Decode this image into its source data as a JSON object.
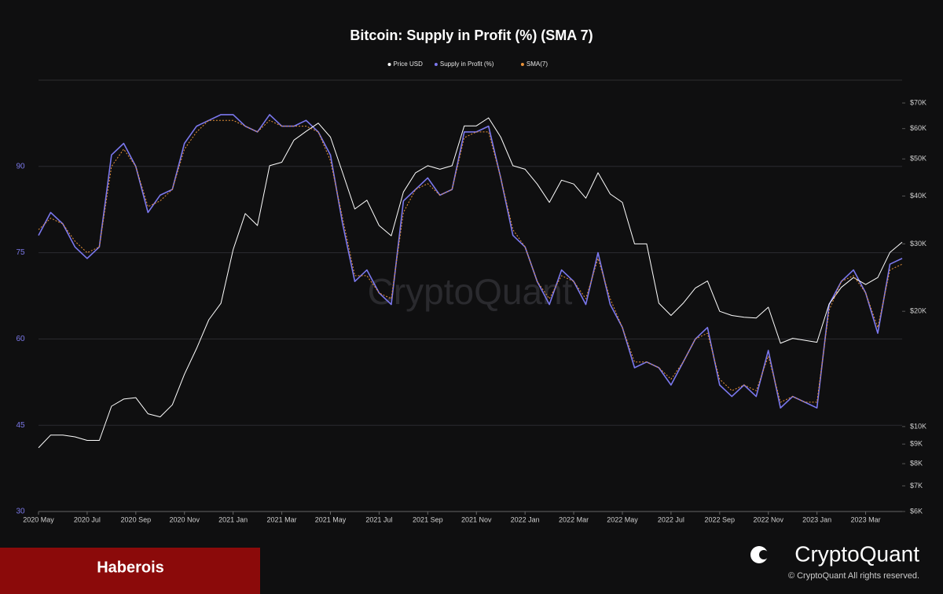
{
  "watermark": "CryptoQuant",
  "author": "Haberois",
  "brand": "CryptoQuant",
  "copyright": "© CryptoQuant All rights reserved.",
  "chart_data": {
    "type": "line",
    "title": "Bitcoin: Supply in Profit (%) (SMA 7)",
    "categories": [
      "2020 May",
      null,
      null,
      null,
      "2020 Jul",
      null,
      null,
      null,
      "2020 Sep",
      null,
      null,
      null,
      "2020 Nov",
      null,
      null,
      null,
      "2021 Jan",
      null,
      null,
      null,
      "2021 Mar",
      null,
      null,
      null,
      "2021 May",
      null,
      null,
      null,
      "2021 Jul",
      null,
      null,
      null,
      "2021 Sep",
      null,
      null,
      null,
      "2021 Nov",
      null,
      null,
      null,
      "2022 Jan",
      null,
      null,
      null,
      "2022 Mar",
      null,
      null,
      null,
      "2022 May",
      null,
      null,
      null,
      "2022 Jul",
      null,
      null,
      null,
      "2022 Sep",
      null,
      null,
      null,
      "2022 Nov",
      null,
      null,
      null,
      "2023 Jan",
      null,
      null,
      null,
      "2023 Mar",
      null,
      null,
      null
    ],
    "series": [
      {
        "name": "Price USD",
        "color": "#ffffff",
        "axis": "y2",
        "values": [
          8800,
          9500,
          9500,
          9400,
          9200,
          9200,
          11300,
          11800,
          11900,
          10800,
          10600,
          11400,
          13700,
          16000,
          19000,
          21000,
          29000,
          36000,
          33500,
          48000,
          49000,
          56000,
          59000,
          62000,
          57000,
          46000,
          37000,
          39000,
          33500,
          31500,
          41000,
          46000,
          48000,
          47000,
          48000,
          61000,
          61000,
          64000,
          57000,
          48000,
          47000,
          43000,
          38500,
          44000,
          43000,
          39500,
          46000,
          40500,
          38500,
          30000,
          30000,
          21000,
          19500,
          21000,
          23000,
          24000,
          20000,
          19500,
          19300,
          19200,
          20500,
          16500,
          17000,
          16800,
          16600,
          20900,
          23100,
          24500,
          23500,
          24500,
          28500,
          30300
        ]
      },
      {
        "name": "Supply in Profit (%)",
        "color": "#7b78ee",
        "values": [
          78,
          82,
          80,
          76,
          74,
          76,
          92,
          94,
          90,
          82,
          85,
          86,
          94,
          97,
          98,
          99,
          99,
          97,
          96,
          99,
          97,
          97,
          98,
          96,
          92,
          80,
          70,
          72,
          68,
          66,
          84,
          86,
          88,
          85,
          86,
          96,
          96,
          97,
          88,
          78,
          76,
          70,
          66,
          72,
          70,
          66,
          75,
          66,
          62,
          55,
          56,
          55,
          52,
          56,
          60,
          62,
          52,
          50,
          52,
          50,
          58,
          48,
          50,
          49,
          48,
          66,
          70,
          72,
          68,
          61,
          73,
          74
        ]
      },
      {
        "name": "SMA(7)",
        "color": "#e8923a",
        "values": [
          79,
          81,
          80,
          77,
          75,
          76,
          90,
          93,
          90,
          83,
          84,
          86,
          93,
          96,
          98,
          98,
          98,
          97,
          96,
          98,
          97,
          97,
          97,
          96,
          91,
          81,
          71,
          71,
          68,
          67,
          82,
          86,
          87,
          85,
          86,
          95,
          96,
          96,
          88,
          79,
          76,
          70,
          67,
          71,
          70,
          67,
          74,
          67,
          62,
          56,
          56,
          55,
          53,
          56,
          60,
          61,
          53,
          51,
          52,
          51,
          57,
          49,
          50,
          49,
          49,
          65,
          70,
          71,
          68,
          62,
          72,
          73
        ]
      }
    ],
    "ylim": [
      30,
      105
    ],
    "yticks": [
      30,
      45,
      60,
      75,
      90
    ],
    "y2lim": [
      6000,
      80300
    ],
    "y2log": true,
    "y2ticks": [
      {
        "value": 6000,
        "label": "$6K"
      },
      {
        "value": 7000,
        "label": "$7K"
      },
      {
        "value": 8000,
        "label": "$8K"
      },
      {
        "value": 9000,
        "label": "$9K"
      },
      {
        "value": 10000,
        "label": "$10K"
      },
      {
        "value": 20000,
        "label": "$20K"
      },
      {
        "value": 30000,
        "label": "$30K"
      },
      {
        "value": 40000,
        "label": "$40K"
      },
      {
        "value": 50000,
        "label": "$50K"
      },
      {
        "value": 60000,
        "label": "$60K"
      },
      {
        "value": 70000,
        "label": "$70K"
      }
    ],
    "grid": true,
    "legend": "top"
  }
}
